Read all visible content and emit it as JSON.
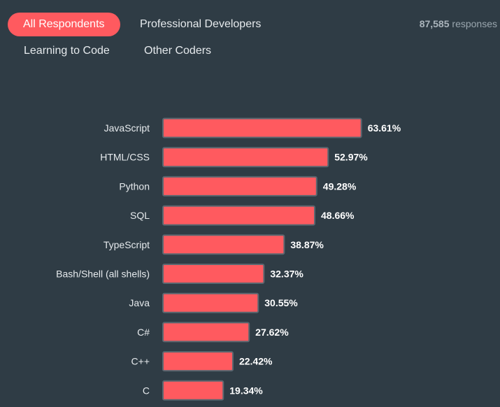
{
  "tabs": [
    {
      "label": "All Respondents",
      "active": true
    },
    {
      "label": "Professional Developers",
      "active": false
    },
    {
      "label": "Learning to Code",
      "active": false
    },
    {
      "label": "Other Coders",
      "active": false
    }
  ],
  "responses": {
    "count": "87,585",
    "label": "responses"
  },
  "colors": {
    "background": "#2f3c45",
    "bar": "#ff5a5f",
    "bar_border": "#5b6770",
    "active_tab": "#ff5a5f"
  },
  "chart_data": {
    "type": "bar",
    "orientation": "horizontal",
    "categories": [
      "JavaScript",
      "HTML/CSS",
      "Python",
      "SQL",
      "TypeScript",
      "Bash/Shell (all shells)",
      "Java",
      "C#",
      "C++",
      "C"
    ],
    "values": [
      63.61,
      52.97,
      49.28,
      48.66,
      38.87,
      32.37,
      30.55,
      27.62,
      22.42,
      19.34
    ],
    "value_labels": [
      "63.61%",
      "52.97%",
      "49.28%",
      "48.66%",
      "38.87%",
      "32.37%",
      "30.55%",
      "27.62%",
      "22.42%",
      "19.34%"
    ],
    "unit": "%"
  }
}
